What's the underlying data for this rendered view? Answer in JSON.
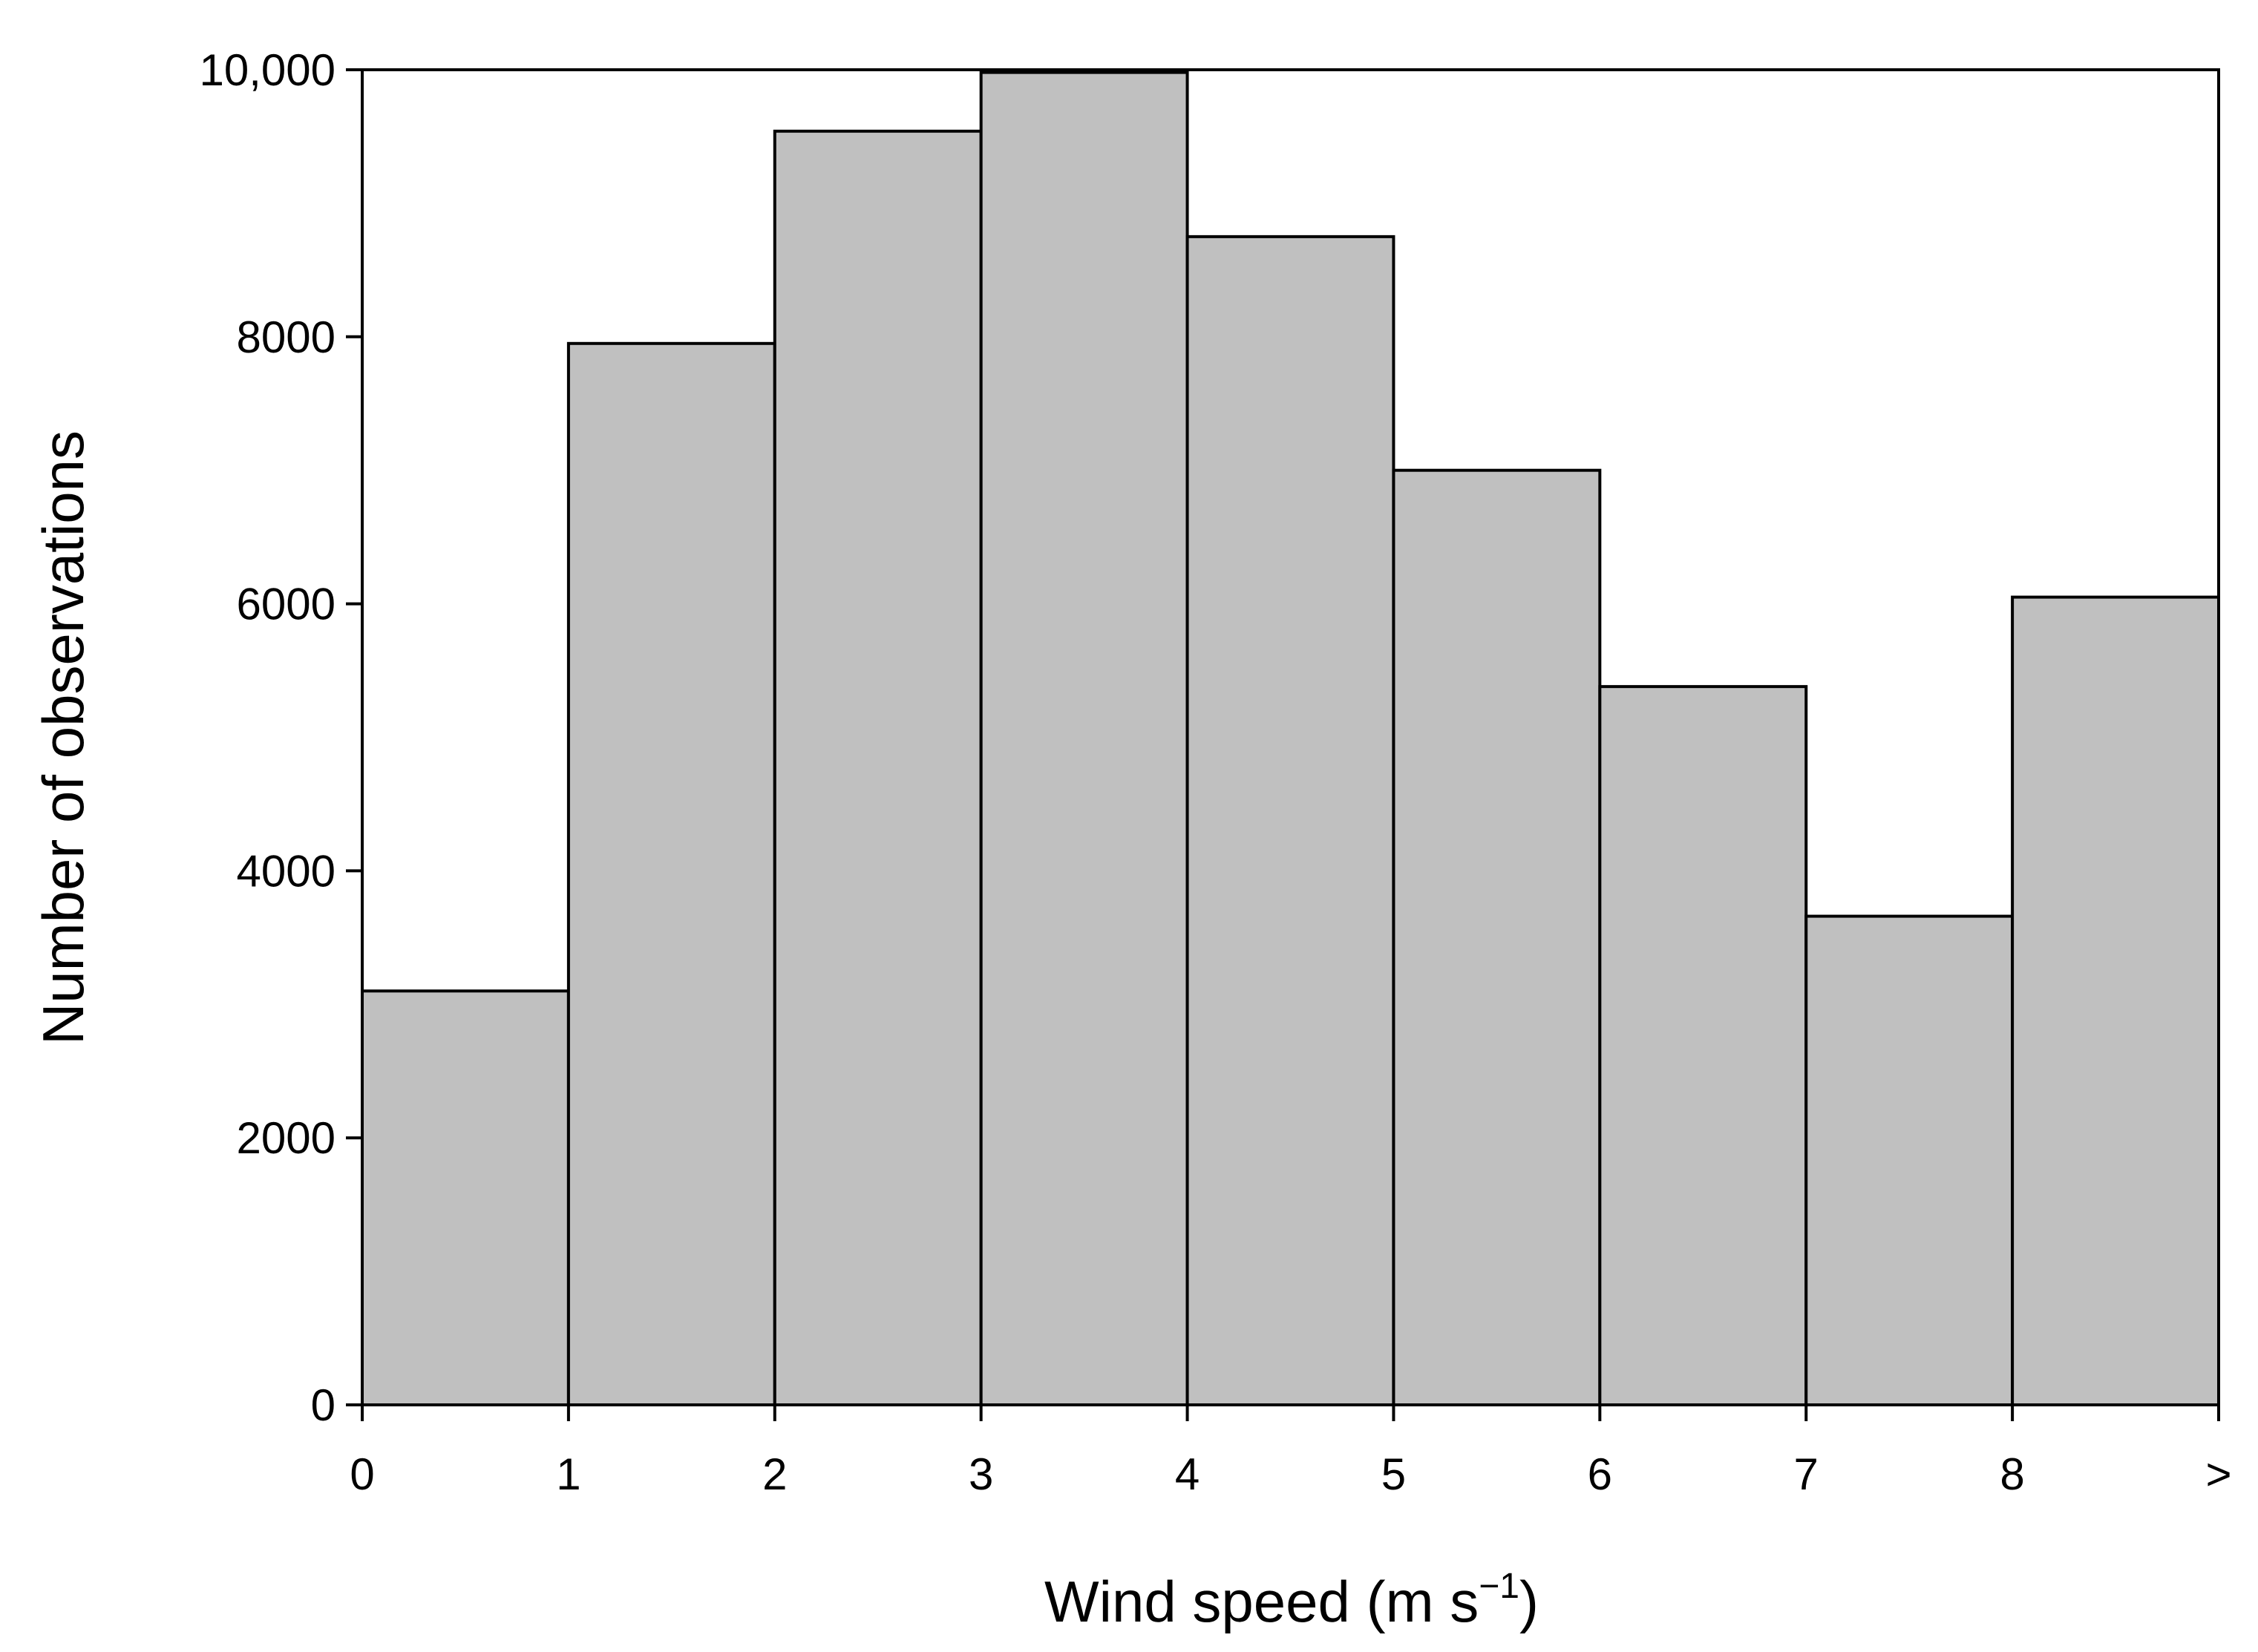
{
  "chart_data": {
    "type": "histogram",
    "xlabel": [
      "Wind speed (m s",
      "−1",
      ")"
    ],
    "ylabel": "Number of observations",
    "bins": [
      0,
      1,
      2,
      3,
      4,
      5,
      6,
      7,
      8,
      9
    ],
    "counts": [
      3100,
      7950,
      9540,
      9980,
      8750,
      7000,
      5380,
      3660,
      6050
    ],
    "color": "#c0c0c0",
    "xlim": [
      0,
      9
    ],
    "xticks": [
      0,
      1,
      2,
      3,
      4,
      5,
      6,
      7,
      8,
      {
        "value": 9,
        "label": ">"
      }
    ],
    "ylim": [
      0,
      10000
    ],
    "yticks": [
      0,
      2000,
      4000,
      6000,
      8000,
      {
        "value": 10000,
        "label": "10,000"
      }
    ],
    "grid": false
  }
}
